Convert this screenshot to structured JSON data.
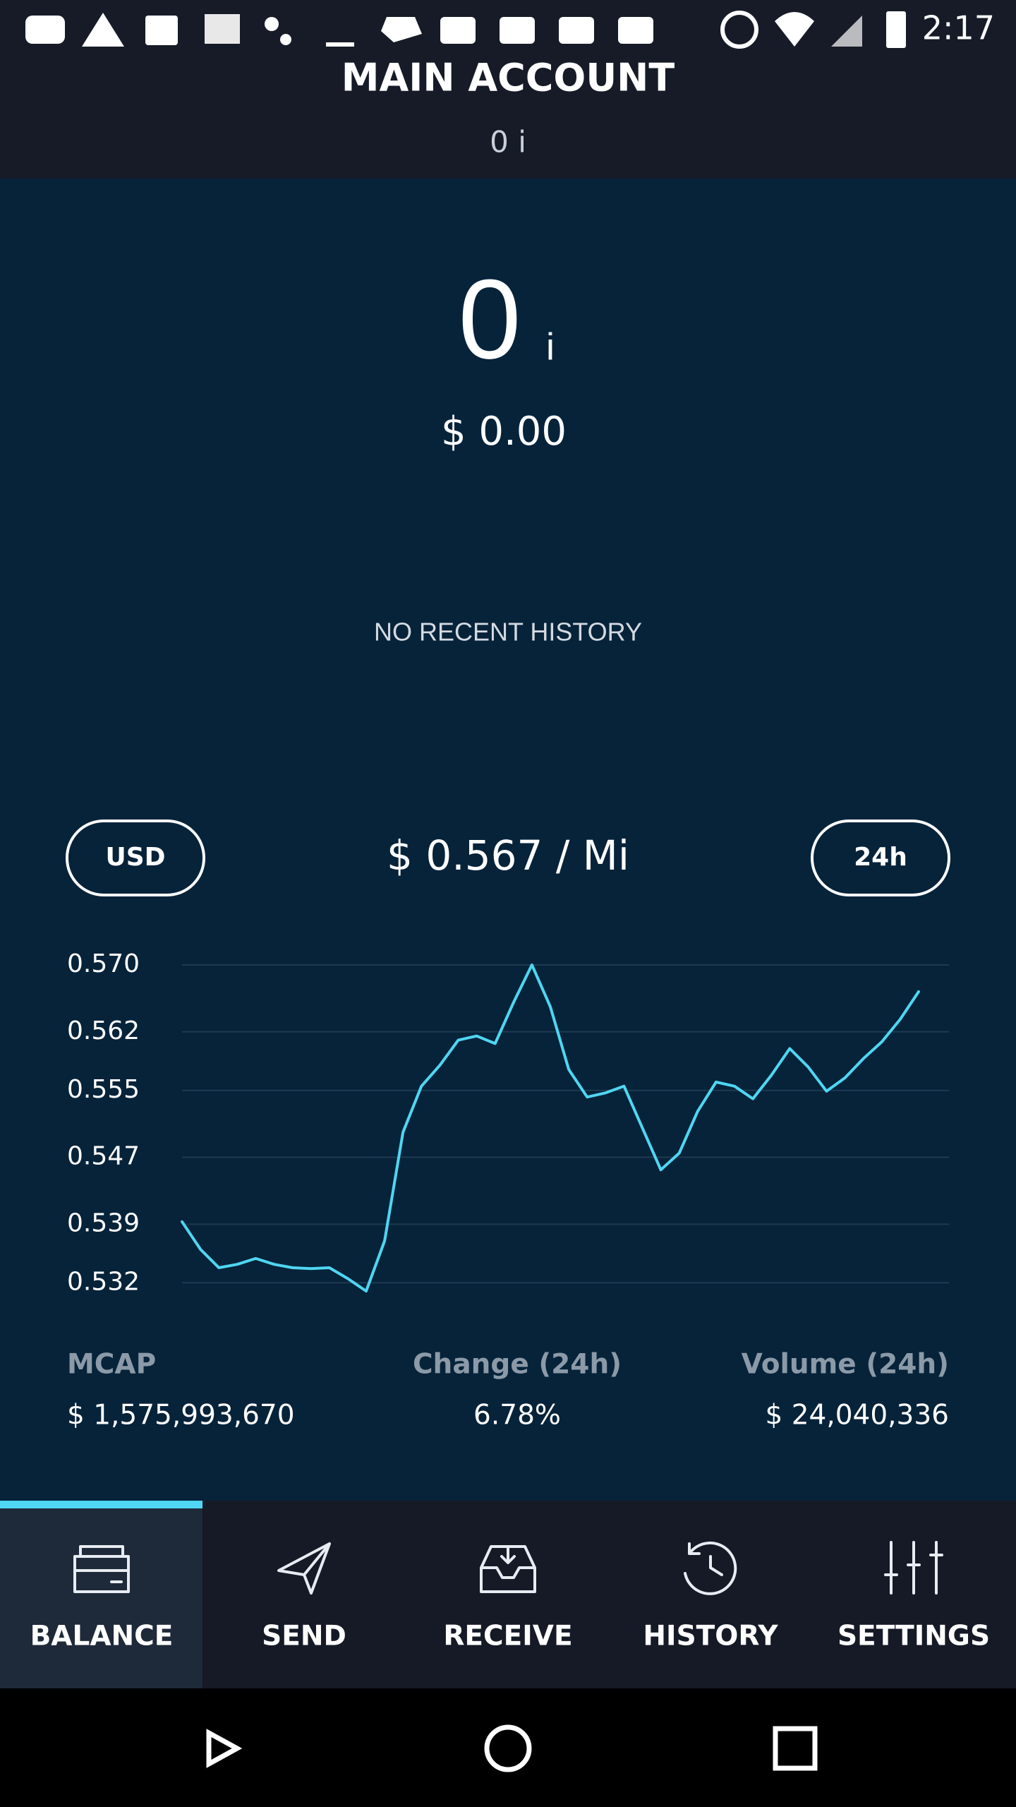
{
  "status_bar": {
    "time": "2:17"
  },
  "header": {
    "title": "MAIN ACCOUNT",
    "balance": "0 i"
  },
  "balance": {
    "amount": "0",
    "unit": "i",
    "fiat": "$ 0.00"
  },
  "history": {
    "empty_text": "NO RECENT HISTORY"
  },
  "price": {
    "currency": "USD",
    "rate": "$ 0.567 / Mi",
    "period": "24h"
  },
  "chart_data": {
    "type": "line",
    "color": "#4fd6f2",
    "grid": true,
    "values": [
      0.5393,
      0.536,
      0.5338,
      0.5342,
      0.5349,
      0.5342,
      0.5338,
      0.5337,
      0.5338,
      0.5325,
      0.531,
      0.537,
      0.55,
      0.5555,
      0.558,
      0.561,
      0.5615,
      0.5606,
      0.5655,
      0.57,
      0.565,
      0.5575,
      0.5542,
      0.5547,
      0.5555,
      0.5505,
      0.5455,
      0.5475,
      0.5525,
      0.556,
      0.5555,
      0.554,
      0.5568,
      0.56,
      0.5578,
      0.5549,
      0.5565,
      0.5588,
      0.5608,
      0.5635,
      0.5668
    ],
    "ylim": [
      0.53,
      0.57
    ],
    "yticks": [
      {
        "value": 0.57,
        "label": "0.570"
      },
      0.562,
      0.555,
      0.547,
      0.539,
      0.532
    ]
  },
  "stats": [
    {
      "label": "MCAP",
      "value": "$ 1,575,993,670"
    },
    {
      "label": "Change (24h)",
      "value": "6.78%"
    },
    {
      "label": "Volume (24h)",
      "value": "$ 24,040,336"
    }
  ],
  "nav": [
    "BALANCE",
    "SEND",
    "RECEIVE",
    "HISTORY",
    "SETTINGS"
  ]
}
